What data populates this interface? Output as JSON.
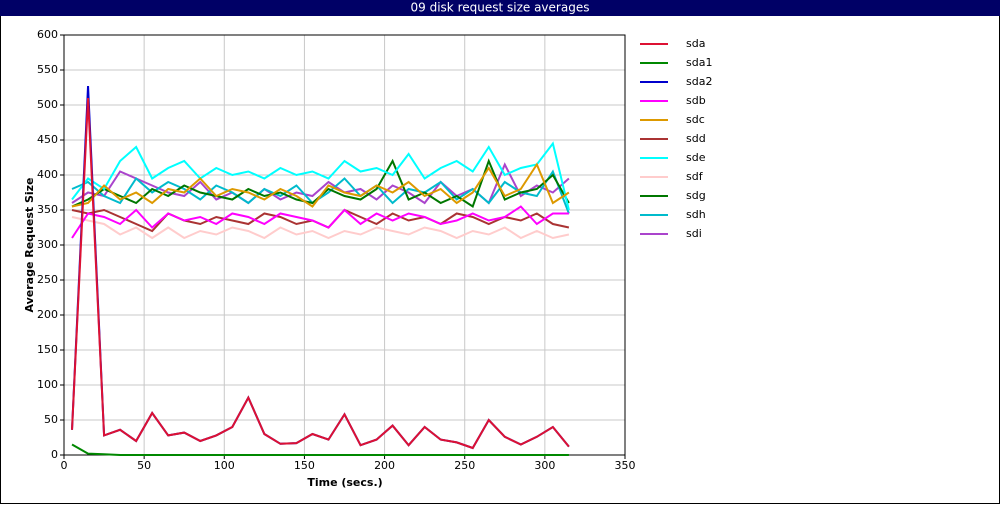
{
  "chart_data": {
    "type": "line",
    "title": "09 disk request size averages",
    "xlabel": "Time (secs.)",
    "ylabel": "Average Request Size",
    "xlim": [
      0,
      350
    ],
    "xticks": [
      0,
      50,
      100,
      150,
      200,
      250,
      300,
      350
    ],
    "ylim": [
      0,
      600
    ],
    "yticks": [
      0,
      50,
      100,
      150,
      200,
      250,
      300,
      350,
      400,
      450,
      500,
      550,
      600
    ],
    "grid": true,
    "legend": "right",
    "x": [
      5,
      15,
      25,
      35,
      45,
      55,
      65,
      75,
      85,
      95,
      105,
      115,
      125,
      135,
      145,
      155,
      165,
      175,
      185,
      195,
      205,
      215,
      225,
      235,
      245,
      255,
      265,
      275,
      285,
      295,
      305,
      315
    ],
    "series": [
      {
        "name": "sda",
        "color": "#dd1133",
        "values": [
          36,
          510,
          28,
          36,
          20,
          60,
          28,
          32,
          20,
          28,
          40,
          82,
          30,
          16,
          17,
          30,
          22,
          58,
          14,
          22,
          42,
          14,
          40,
          22,
          18,
          10,
          50,
          26,
          15,
          26,
          40,
          12
        ]
      },
      {
        "name": "sda1",
        "color": "#008800",
        "values": [
          15,
          2,
          1,
          0,
          0,
          0,
          0,
          0,
          0,
          0,
          0,
          0,
          0,
          0,
          0,
          0,
          0,
          0,
          0,
          0,
          0,
          0,
          0,
          0,
          0,
          0,
          0,
          0,
          0,
          0,
          0,
          0
        ]
      },
      {
        "name": "sda2",
        "color": "#0000cc",
        "values": [
          36,
          527,
          28,
          36,
          20,
          60,
          28,
          32,
          20,
          28,
          40,
          82,
          30,
          16,
          17,
          30,
          22,
          58,
          14,
          22,
          42,
          14,
          40,
          22,
          18,
          10,
          50,
          26,
          15,
          26,
          40,
          12
        ]
      },
      {
        "name": "sdb",
        "color": "#ff00ff",
        "values": [
          310,
          345,
          340,
          330,
          350,
          325,
          345,
          335,
          340,
          330,
          345,
          340,
          330,
          345,
          340,
          335,
          325,
          350,
          330,
          345,
          335,
          345,
          340,
          330,
          335,
          345,
          335,
          340,
          355,
          330,
          345,
          345
        ]
      },
      {
        "name": "sdc",
        "color": "#dd9900",
        "values": [
          355,
          360,
          385,
          365,
          375,
          360,
          380,
          375,
          395,
          370,
          380,
          375,
          365,
          380,
          370,
          355,
          385,
          375,
          370,
          385,
          375,
          390,
          370,
          380,
          360,
          375,
          410,
          370,
          380,
          415,
          360,
          375
        ]
      },
      {
        "name": "sdd",
        "color": "#aa3333",
        "values": [
          350,
          345,
          350,
          340,
          330,
          320,
          345,
          335,
          330,
          340,
          335,
          330,
          345,
          340,
          330,
          335,
          325,
          350,
          340,
          330,
          345,
          335,
          340,
          330,
          345,
          340,
          330,
          340,
          335,
          345,
          330,
          325
        ]
      },
      {
        "name": "sde",
        "color": "#00ffff",
        "values": [
          365,
          395,
          380,
          420,
          440,
          395,
          410,
          420,
          395,
          410,
          400,
          405,
          395,
          410,
          400,
          405,
          395,
          420,
          405,
          410,
          400,
          430,
          395,
          410,
          420,
          405,
          440,
          400,
          410,
          415,
          445,
          350
        ]
      },
      {
        "name": "sdf",
        "color": "#ffcccc",
        "values": [
          340,
          335,
          330,
          315,
          325,
          310,
          325,
          310,
          320,
          315,
          325,
          320,
          310,
          325,
          315,
          320,
          310,
          320,
          315,
          325,
          320,
          315,
          325,
          320,
          310,
          320,
          315,
          325,
          310,
          320,
          310,
          315
        ]
      },
      {
        "name": "sdg",
        "color": "#007700",
        "values": [
          355,
          365,
          380,
          370,
          360,
          380,
          370,
          385,
          375,
          370,
          365,
          380,
          370,
          375,
          365,
          360,
          380,
          370,
          365,
          380,
          420,
          365,
          375,
          360,
          370,
          355,
          420,
          365,
          375,
          380,
          400,
          360
        ]
      },
      {
        "name": "sdh",
        "color": "#00bbcc",
        "values": [
          380,
          390,
          370,
          360,
          395,
          375,
          390,
          380,
          365,
          385,
          375,
          360,
          380,
          370,
          385,
          360,
          375,
          395,
          370,
          385,
          360,
          380,
          375,
          390,
          365,
          380,
          360,
          390,
          375,
          370,
          405,
          345
        ]
      },
      {
        "name": "sdi",
        "color": "#aa44cc",
        "values": [
          360,
          375,
          370,
          405,
          395,
          385,
          375,
          370,
          390,
          365,
          375,
          360,
          380,
          365,
          375,
          370,
          390,
          375,
          380,
          365,
          385,
          375,
          360,
          390,
          370,
          380,
          360,
          415,
          370,
          385,
          375,
          395
        ]
      }
    ]
  }
}
